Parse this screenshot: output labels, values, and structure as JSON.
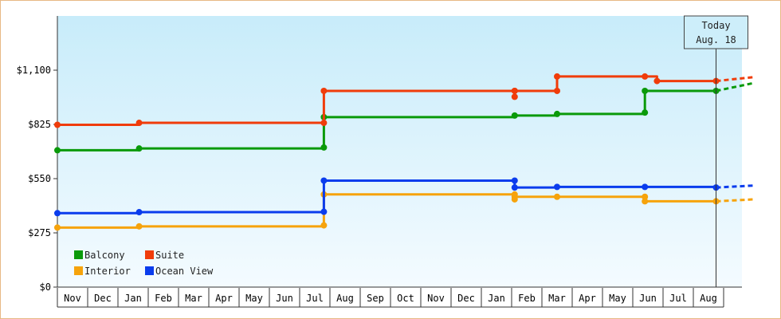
{
  "chart_data": {
    "type": "line",
    "title": "",
    "xlabel": "",
    "ylabel": "",
    "ylim": [
      0,
      1375
    ],
    "y_ticks": [
      {
        "value": 0,
        "label": "$0"
      },
      {
        "value": 275,
        "label": "$275"
      },
      {
        "value": 550,
        "label": "$550"
      },
      {
        "value": 825,
        "label": "$825"
      },
      {
        "value": 1100,
        "label": "$1,100"
      }
    ],
    "months": [
      "Nov",
      "Dec",
      "Jan",
      "Feb",
      "Mar",
      "Apr",
      "May",
      "Jun",
      "Jul",
      "Aug",
      "Sep",
      "Oct",
      "Nov",
      "Dec",
      "Jan",
      "Feb",
      "Mar",
      "Apr",
      "May",
      "Jun",
      "Jul",
      "Aug"
    ],
    "legend_position": "bottom-left",
    "today_marker": {
      "line1": "Today",
      "line2": "Aug. 18",
      "x": 21.75
    },
    "series": [
      {
        "name": "Balcony",
        "color": "#0a9a0a",
        "points": [
          [
            0.0,
            694
          ],
          [
            2.7,
            703
          ],
          [
            8.8,
            708
          ],
          [
            8.8,
            862
          ],
          [
            15.1,
            870
          ],
          [
            16.5,
            878
          ],
          [
            19.4,
            885
          ],
          [
            19.4,
            995
          ],
          [
            21.75,
            995
          ]
        ],
        "projection": [
          [
            21.75,
            995
          ],
          [
            23.0,
            1035
          ]
        ]
      },
      {
        "name": "Suite",
        "color": "#f03c0a",
        "points": [
          [
            0.0,
            823
          ],
          [
            2.7,
            833
          ],
          [
            8.8,
            833
          ],
          [
            8.8,
            995
          ],
          [
            15.1,
            995
          ],
          [
            15.1,
            965
          ],
          [
            15.1,
            995
          ],
          [
            16.5,
            995
          ],
          [
            16.5,
            1068
          ],
          [
            19.4,
            1068
          ],
          [
            19.8,
            1045
          ],
          [
            21.75,
            1045
          ]
        ],
        "projection": [
          [
            21.75,
            1045
          ],
          [
            23.0,
            1065
          ]
        ]
      },
      {
        "name": "Interior",
        "color": "#f6a30c",
        "points": [
          [
            0.0,
            302
          ],
          [
            2.7,
            308
          ],
          [
            8.8,
            313
          ],
          [
            8.8,
            470
          ],
          [
            15.1,
            470
          ],
          [
            15.1,
            445
          ],
          [
            15.1,
            458
          ],
          [
            16.5,
            458
          ],
          [
            19.4,
            458
          ],
          [
            19.4,
            435
          ],
          [
            21.75,
            435
          ]
        ],
        "projection": [
          [
            21.75,
            435
          ],
          [
            23.0,
            445
          ]
        ]
      },
      {
        "name": "Ocean View",
        "color": "#0a3ced",
        "points": [
          [
            0.0,
            375
          ],
          [
            2.7,
            380
          ],
          [
            8.8,
            382
          ],
          [
            8.8,
            540
          ],
          [
            15.1,
            540
          ],
          [
            15.1,
            505
          ],
          [
            16.5,
            508
          ],
          [
            19.4,
            508
          ],
          [
            21.75,
            505
          ]
        ],
        "projection": [
          [
            21.75,
            505
          ],
          [
            23.0,
            515
          ]
        ]
      }
    ],
    "legend": [
      {
        "label": "Balcony",
        "color": "#0a9a0a"
      },
      {
        "label": "Suite",
        "color": "#f03c0a"
      },
      {
        "label": "Interior",
        "color": "#f6a30c"
      },
      {
        "label": "Ocean View",
        "color": "#0a3ced"
      }
    ]
  }
}
